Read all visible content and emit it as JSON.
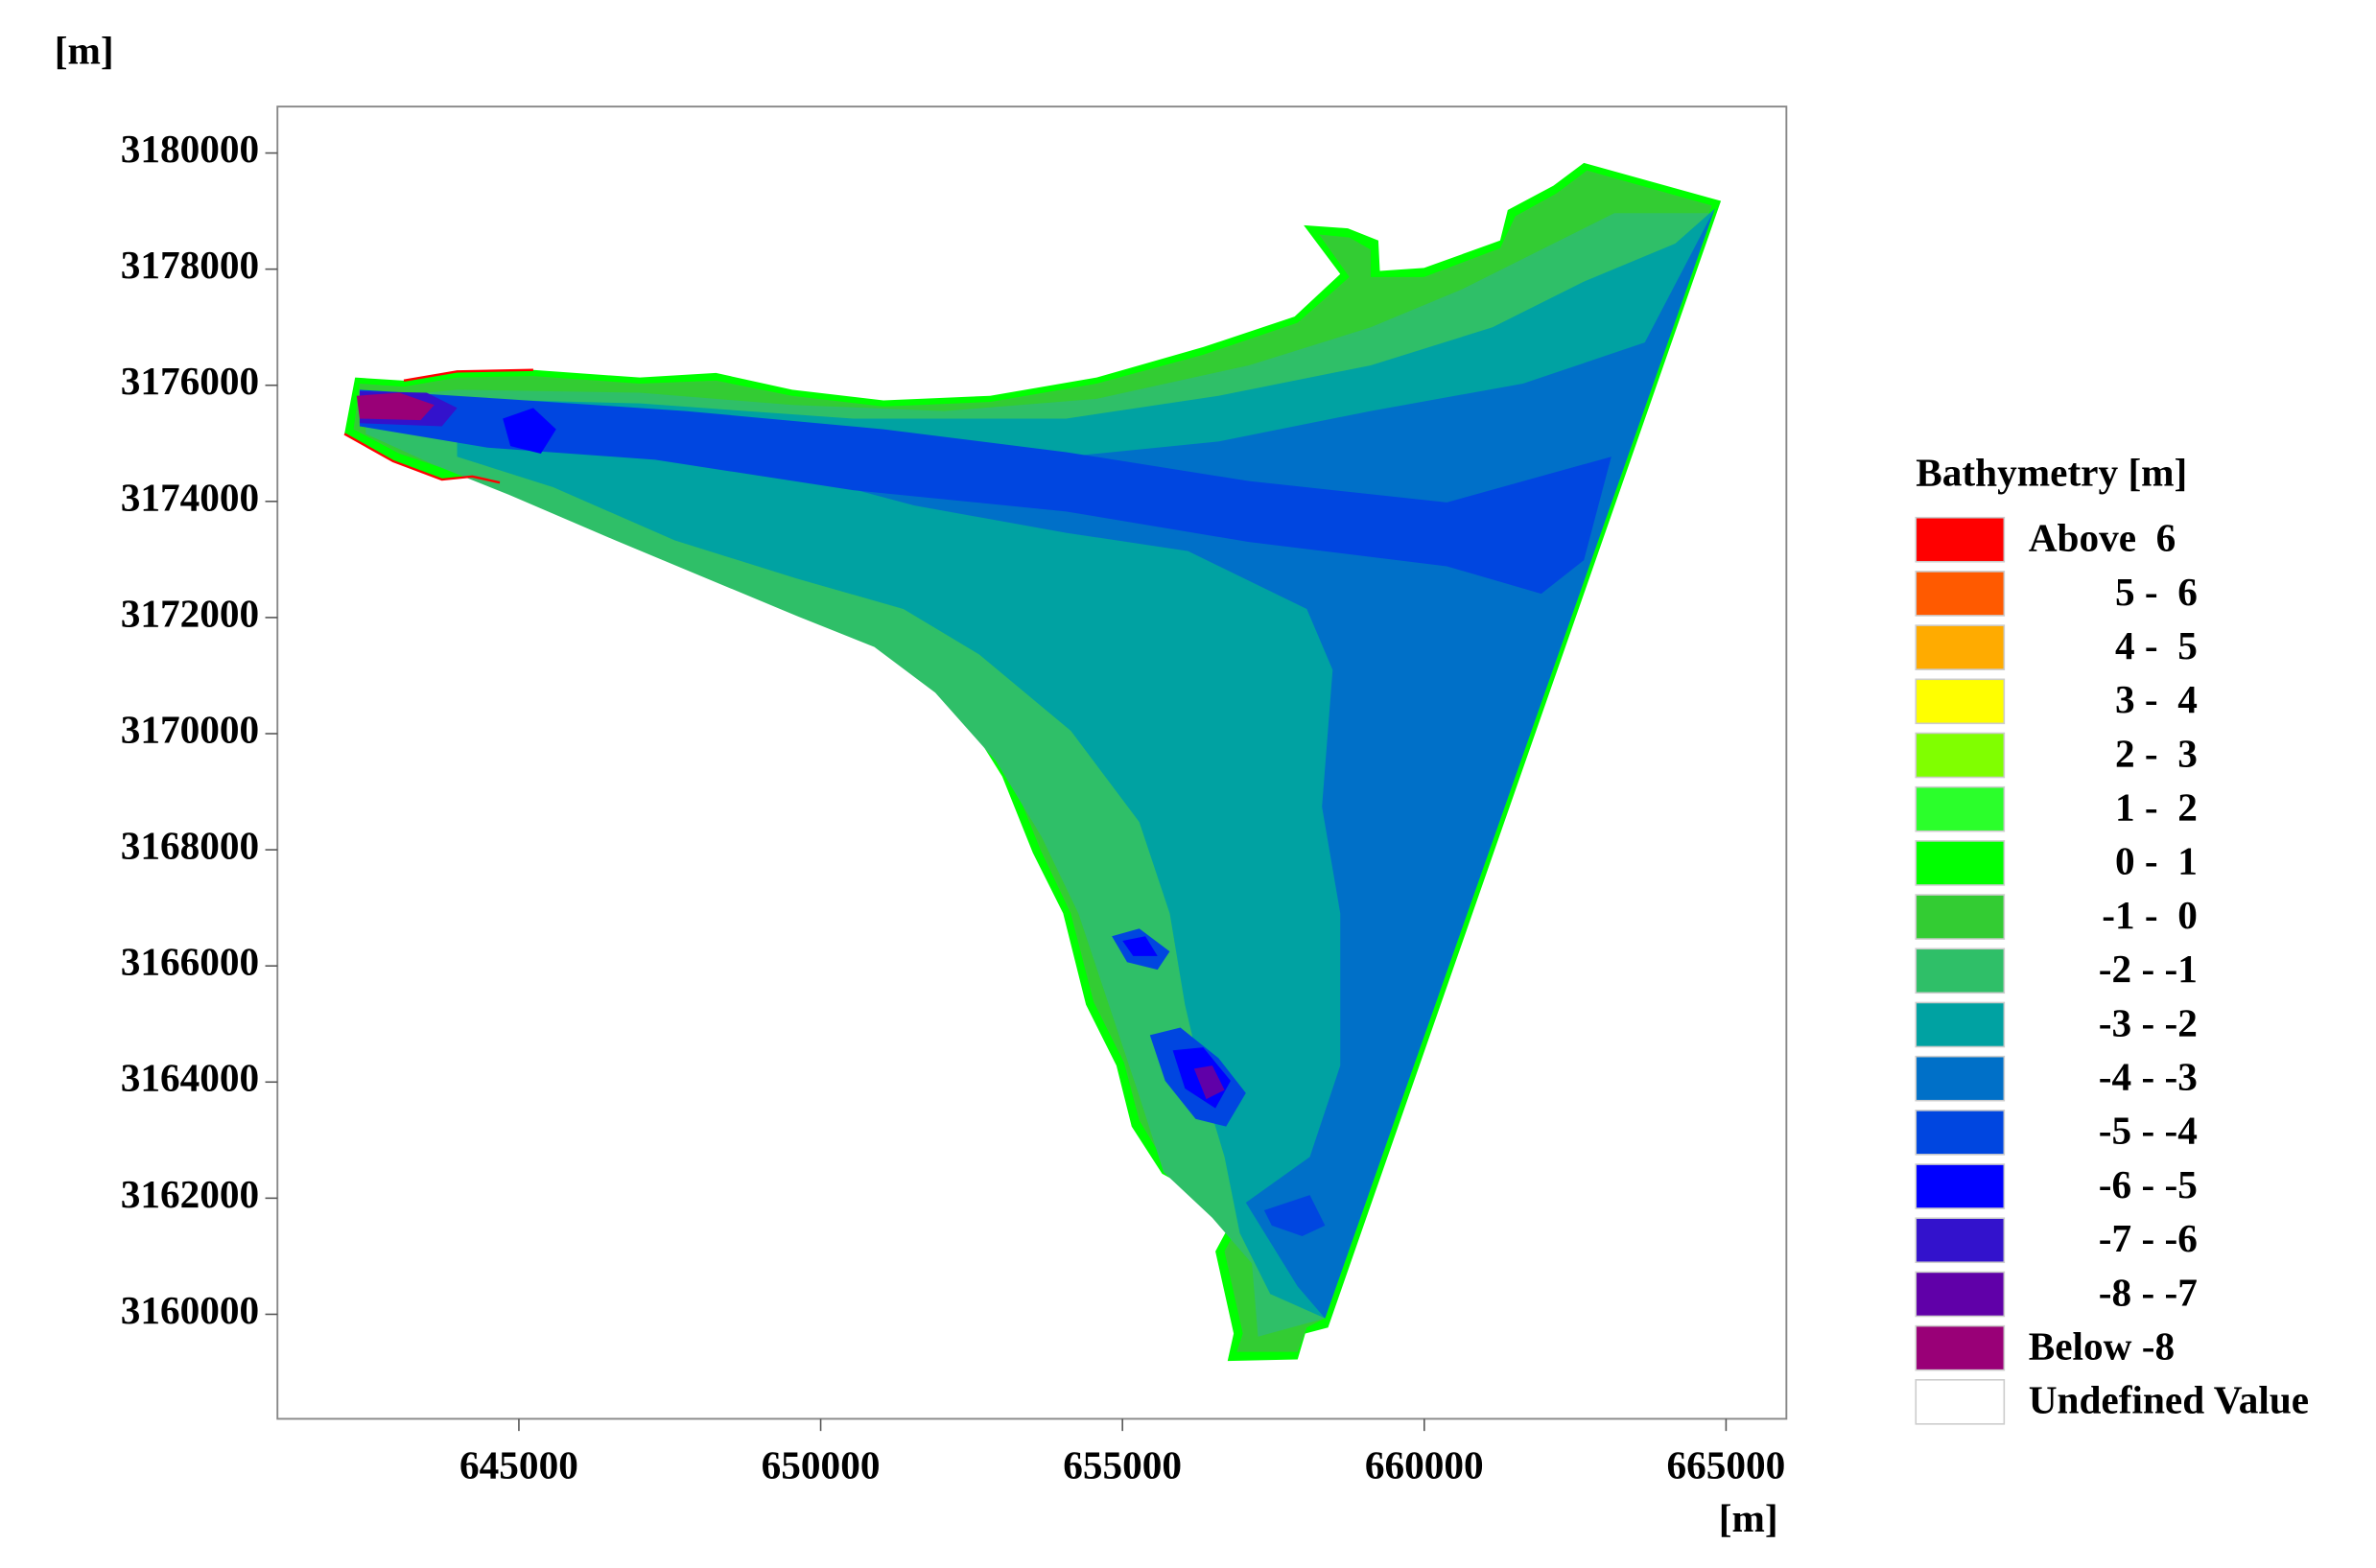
{
  "chart_data": {
    "type": "contour",
    "x_label": "[m]",
    "y_label": "[m]",
    "xlim": [
      641000,
      666000
    ],
    "ylim": [
      3158200,
      3180800
    ],
    "xticks": [
      645000,
      650000,
      655000,
      660000,
      665000
    ],
    "yticks": [
      3160000,
      3162000,
      3164000,
      3166000,
      3168000,
      3170000,
      3172000,
      3174000,
      3176000,
      3178000,
      3180000
    ],
    "legend": {
      "title": "Bathymetry [m]",
      "items": [
        {
          "label": "Above  6",
          "color": "#ff0000"
        },
        {
          "label": "5 -  6",
          "color": "#ff5a00"
        },
        {
          "label": "4 -  5",
          "color": "#ffab00"
        },
        {
          "label": "3 -  4",
          "color": "#ffff00"
        },
        {
          "label": "2 -  3",
          "color": "#80ff00"
        },
        {
          "label": "1 -  2",
          "color": "#2bff2b"
        },
        {
          "label": "0 -  1",
          "color": "#00ff00"
        },
        {
          "label": "-1 -  0",
          "color": "#33cc33"
        },
        {
          "label": "-2 - -1",
          "color": "#2fbf68"
        },
        {
          "label": "-3 - -2",
          "color": "#00a2a2"
        },
        {
          "label": "-4 - -3",
          "color": "#0070c8"
        },
        {
          "label": "-5 - -4",
          "color": "#0046e0"
        },
        {
          "label": "-6 - -5",
          "color": "#0000ff"
        },
        {
          "label": "-7 - -6",
          "color": "#3312cc"
        },
        {
          "label": "-8 - -7",
          "color": "#6000a8"
        },
        {
          "label": "Below -8",
          "color": "#990077"
        },
        {
          "label": "Undefined Value",
          "color": "#ffffff"
        }
      ]
    }
  }
}
